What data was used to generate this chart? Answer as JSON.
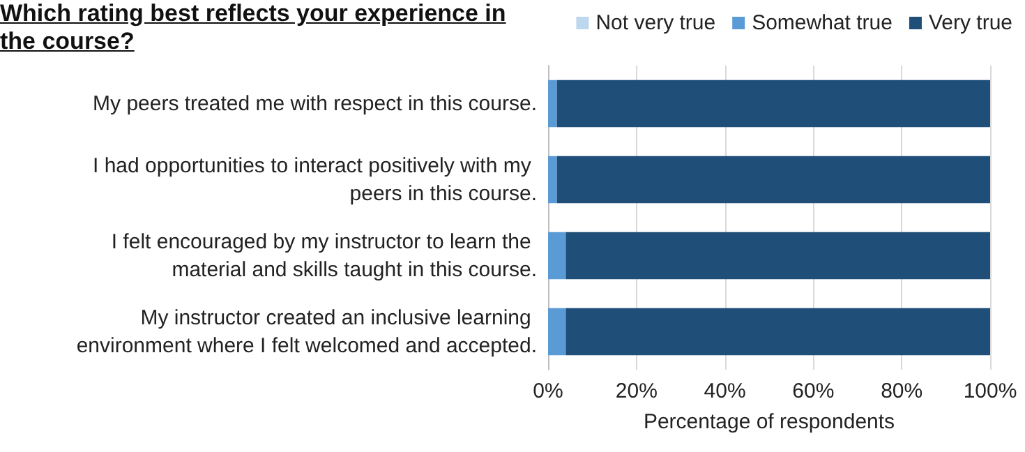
{
  "chart_data": {
    "type": "bar",
    "orientation": "horizontal",
    "stacked": true,
    "title": "Which rating best reflects your experience in the course?",
    "xlabel": "Percentage of respondents",
    "categories": [
      "My peers treated me with respect in this course.",
      "I had opportunities to interact positively with my peers in this course.",
      "I felt encouraged by my instructor to learn the material and skills taught in this course.",
      "My instructor created an inclusive learning environment where I felt welcomed and accepted."
    ],
    "series": [
      {
        "name": "Not very true",
        "color": "#bdd7ee",
        "values": [
          0,
          0,
          0,
          0
        ]
      },
      {
        "name": "Somewhat true",
        "color": "#5b9bd5",
        "values": [
          2,
          2,
          4,
          4
        ]
      },
      {
        "name": "Very true",
        "color": "#1f4e79",
        "values": [
          98,
          98,
          96,
          96
        ]
      }
    ],
    "xlim": [
      0,
      100
    ],
    "xticks": [
      {
        "value": 0,
        "label": "0%"
      },
      {
        "value": 20,
        "label": "20%"
      },
      {
        "value": 40,
        "label": "40%"
      },
      {
        "value": 60,
        "label": "60%"
      },
      {
        "value": 80,
        "label": "80%"
      },
      {
        "value": 100,
        "label": "100%"
      }
    ],
    "grid": "x",
    "legend": "top right"
  }
}
